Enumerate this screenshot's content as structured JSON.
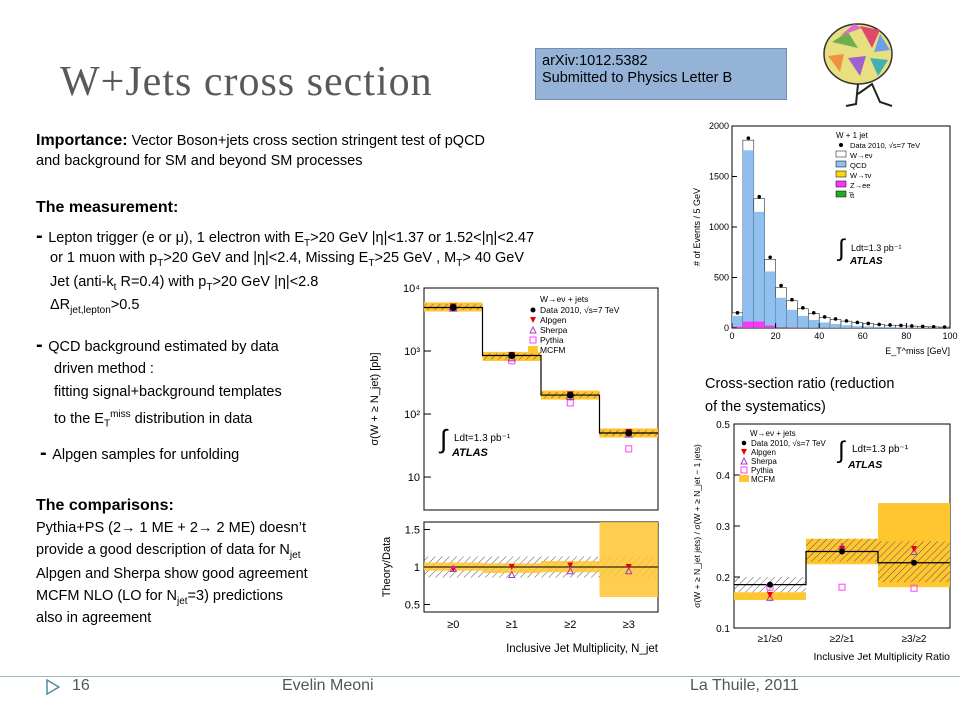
{
  "slide": {
    "title": "W+Jets cross section",
    "reference": [
      "arXiv:1012.5382",
      "Submitted to Physics Letter B"
    ],
    "importance_label": "Importance:",
    "importance_text1": "Vector Boson+jets cross section stringent test of pQCD",
    "importance_text2": "and background for SM and beyond SM processes",
    "measurement_label": "The measurement:",
    "m_line1_a": "Lepton trigger (e or μ), 1 electron with E",
    "m_line1_b": ">20 GeV |η|<1.37 or 1.52<|η|<2.47",
    "m_line2_a": "or 1 muon with p",
    "m_line2_b": ">20 GeV and |η|<2.4, Missing E",
    "m_line2_c": ">25 GeV , M",
    "m_line2_d": "> 40 GeV",
    "m_line3_a": "Jet (anti-k",
    "m_line3_b": " R=0.4) with p",
    "m_line3_c": ">20 GeV |η|<2.8",
    "m_line4_a": "ΔR",
    "m_line4_sub": "jet,lepton",
    "m_line4_b": ">0.5",
    "qcd_line1": "QCD background estimated by data",
    "qcd_line2": "driven method :",
    "qcd_line3": "fitting signal+background templates",
    "qcd_line4_a": "to the E",
    "qcd_line4_sup": "miss",
    "qcd_line4_b": " distribution in data",
    "alpgen_line": "Alpgen samples for unfolding",
    "comparisons_label": "The comparisons:",
    "c_line1": "Pythia+PS (2→ 1 ME + 2→ 2 ME) doesn’t",
    "c_line2_a": "provide a good description of data for N",
    "c_line2_sub": "jet",
    "c_line3": "Alpgen and Sherpa show good agreement",
    "c_line4_a": "MCFM NLO (LO for N",
    "c_line4_sub": "jet",
    "c_line4_b": "=3) predictions",
    "c_line5": "also in agreement",
    "ratio_caption1": "Cross-section ratio (reduction",
    "ratio_caption2": "of the systematics)",
    "sub_T": "T",
    "sub_t": "t",
    "sub_jet": "jet",
    "footer_page": "16",
    "footer_author": "Evelin Meoni",
    "footer_venue": "La Thuile, 2011"
  },
  "chart_data": [
    {
      "type": "bar",
      "title": "W + 1 jet",
      "xlabel": "E_T^miss [GeV]",
      "ylabel": "# of Events / 5 GeV",
      "xlim": [
        0,
        100
      ],
      "ylim": [
        0,
        2000
      ],
      "x_ticks": [
        "0",
        "20",
        "40",
        "60",
        "80",
        "100"
      ],
      "y_ticks": [
        "0",
        "500",
        "1000",
        "1500",
        "2000"
      ],
      "bin_width": 5,
      "bin_starts": [
        0,
        5,
        10,
        15,
        20,
        25,
        30,
        35,
        40,
        45,
        50,
        55,
        60,
        65,
        70,
        75,
        80,
        85,
        90,
        95
      ],
      "series": [
        {
          "name": "Data 2010, √s=7 TeV",
          "values": [
            150,
            1880,
            1300,
            700,
            420,
            280,
            200,
            150,
            110,
            90,
            70,
            55,
            45,
            35,
            30,
            25,
            20,
            15,
            12,
            10
          ]
        },
        {
          "name": "W→eν",
          "values": [
            150,
            1860,
            1280,
            680,
            400,
            270,
            190,
            145,
            105,
            85,
            68,
            52,
            44,
            34,
            28,
            24,
            19,
            14,
            11,
            9
          ]
        },
        {
          "name": "QCD",
          "values": [
            120,
            1760,
            1150,
            560,
            300,
            180,
            120,
            80,
            55,
            40,
            28,
            20,
            15,
            10,
            8,
            6,
            4,
            3,
            2,
            2
          ]
        },
        {
          "name": "W→τν",
          "values": [
            20,
            30,
            25,
            20,
            15,
            10,
            8,
            6,
            4,
            3,
            2,
            2,
            1,
            1,
            1,
            1,
            0,
            0,
            0,
            0
          ]
        },
        {
          "name": "Z→ee",
          "values": [
            10,
            60,
            60,
            20,
            5,
            3,
            2,
            1,
            1,
            0,
            0,
            0,
            0,
            0,
            0,
            0,
            0,
            0,
            0,
            0
          ]
        },
        {
          "name": "t̅t",
          "values": [
            2,
            3,
            4,
            4,
            4,
            3,
            3,
            2,
            2,
            2,
            1,
            1,
            1,
            1,
            1,
            0,
            0,
            0,
            0,
            0
          ]
        }
      ],
      "annotations": [
        "∫Ldt=1.3 pb⁻¹",
        "ATLAS"
      ]
    },
    {
      "type": "line",
      "title": "",
      "ylabel": "σ(W + ≥ N_jet) [pb]",
      "yscale": "log",
      "ylim": [
        3,
        10000
      ],
      "y_ticks": [
        "10",
        "10²",
        "10³",
        "10⁴"
      ],
      "categories": [
        "≥0",
        "≥1",
        "≥2",
        "≥3"
      ],
      "series": [
        {
          "name": "Data 2010, √s=7 TeV",
          "values": [
            4900,
            850,
            200,
            50
          ]
        },
        {
          "name": "Alpgen",
          "values": [
            5100,
            870,
            205,
            52
          ]
        },
        {
          "name": "Sherpa",
          "values": [
            4800,
            780,
            190,
            48
          ]
        },
        {
          "name": "Pythia",
          "values": [
            4800,
            700,
            150,
            28
          ]
        },
        {
          "name": "MCFM",
          "values": [
            5000,
            820,
            200,
            50
          ]
        }
      ],
      "legend_title": "W→eν + jets",
      "annotations": [
        "∫Ldt=1.3 pb⁻¹",
        "ATLAS"
      ],
      "ratio_panel": {
        "ylabel": "Theory/Data",
        "xlabel": "Inclusive Jet Multiplicity, N_jet",
        "y_ticks": [
          "0.5",
          "1",
          "1.5"
        ],
        "ylim": [
          0.4,
          1.6
        ],
        "alpgen": [
          0.97,
          1.0,
          1.02,
          1.0
        ],
        "sherpa": [
          0.98,
          0.9,
          0.95,
          0.95
        ]
      }
    },
    {
      "type": "line",
      "title": "",
      "xlabel": "Inclusive Jet Multiplicity Ratio",
      "ylabel": "σ(W + ≥ N_jet jets) / σ(W + ≥ N_jet − 1 jets)",
      "ylim": [
        0.1,
        0.5
      ],
      "y_ticks": [
        "0.1",
        "0.2",
        "0.3",
        "0.4",
        "0.5"
      ],
      "categories": [
        "≥1/≥0",
        "≥2/≥1",
        "≥3/≥2"
      ],
      "series": [
        {
          "name": "Data 2010, √s=7 TeV",
          "values": [
            0.185,
            0.25,
            0.228
          ]
        },
        {
          "name": "Alpgen",
          "values": [
            0.165,
            0.255,
            0.255
          ]
        },
        {
          "name": "Sherpa",
          "values": [
            0.16,
            0.26,
            0.25
          ]
        },
        {
          "name": "Pythia",
          "values": [
            0.18,
            0.18,
            0.178
          ]
        },
        {
          "name": "MCFM",
          "values": [
            0.165,
            0.245,
            0.23
          ]
        }
      ],
      "legend_title": "W→eν + jets",
      "annotations": [
        "∫Ldt=1.3 pb⁻¹",
        "ATLAS"
      ]
    }
  ]
}
